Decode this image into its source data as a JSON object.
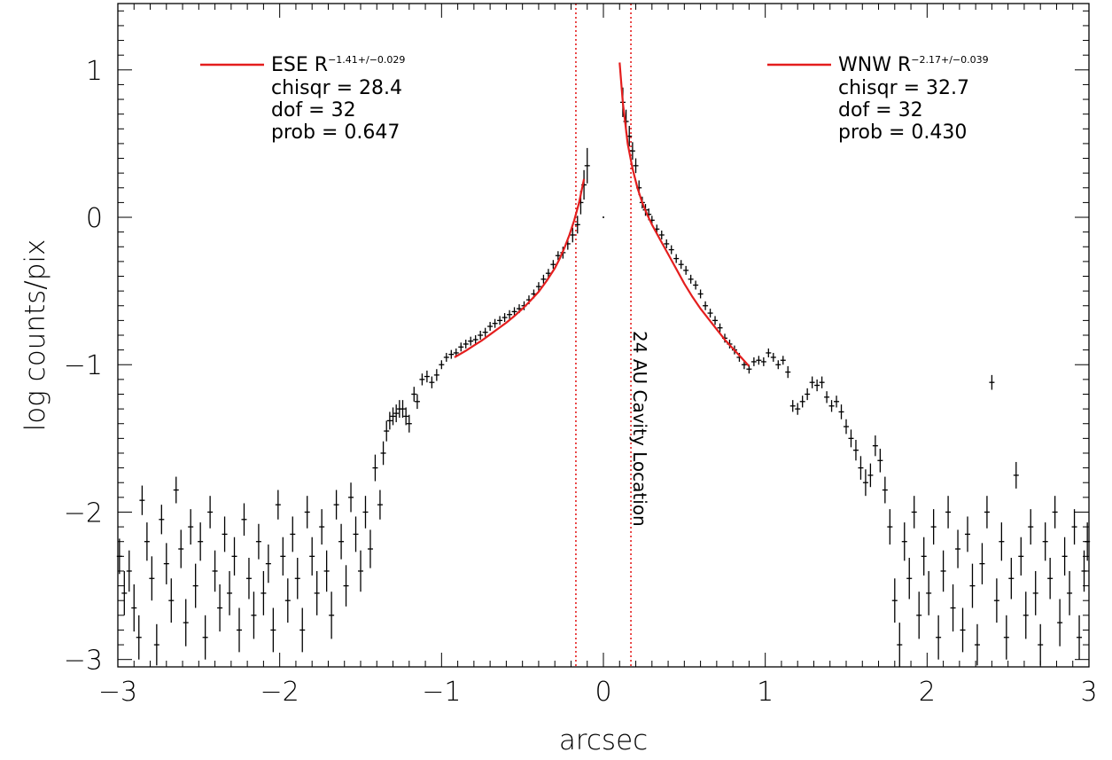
{
  "chart_data": {
    "type": "scatter",
    "xlabel": "arcsec",
    "ylabel": "log counts/pix",
    "xlim": [
      -3,
      3
    ],
    "ylim": [
      -3.05,
      1.45
    ],
    "x_ticks": [
      -3,
      -2,
      -1,
      0,
      1,
      2,
      3
    ],
    "x_tick_labels": [
      "−3",
      "−2",
      "−1",
      "0",
      "1",
      "2",
      "3"
    ],
    "y_ticks": [
      -3,
      -2,
      -1,
      0,
      1
    ],
    "y_tick_labels": [
      "−3",
      "−2",
      "−1",
      "0",
      "1"
    ],
    "grid": false,
    "colors": {
      "data": "#000000",
      "fit": "#e41e1e",
      "vline": "#e41e1e"
    },
    "vlines": [
      -0.17,
      0.17
    ],
    "annotation": "24 AU Cavity Location",
    "legend": [
      {
        "placement": "top-left",
        "name": "ESE",
        "base": "R",
        "sup": "−1.41+/−0.029",
        "lines": [
          "chisqr = 28.4",
          "dof = 32",
          "prob = 0.647"
        ]
      },
      {
        "placement": "top-right",
        "name": "WNW",
        "base": "R",
        "sup": "−2.17+/−0.039",
        "lines": [
          "chisqr = 32.7",
          "dof = 32",
          "prob = 0.430"
        ]
      }
    ],
    "fits": [
      {
        "name": "ESE",
        "x": [
          -0.92,
          -0.85,
          -0.8,
          -0.75,
          -0.7,
          -0.65,
          -0.6,
          -0.55,
          -0.5,
          -0.45,
          -0.4,
          -0.35,
          -0.3,
          -0.27,
          -0.24,
          -0.21,
          -0.18,
          -0.15,
          -0.12
        ],
        "y": [
          -0.95,
          -0.905,
          -0.87,
          -0.835,
          -0.795,
          -0.755,
          -0.715,
          -0.67,
          -0.62,
          -0.565,
          -0.505,
          -0.43,
          -0.345,
          -0.28,
          -0.205,
          -0.12,
          -0.02,
          0.1,
          0.26
        ]
      },
      {
        "name": "WNW",
        "x": [
          0.1,
          0.12,
          0.15,
          0.18,
          0.21,
          0.24,
          0.27,
          0.3,
          0.35,
          0.4,
          0.45,
          0.5,
          0.55,
          0.6,
          0.65,
          0.7,
          0.75,
          0.8,
          0.85,
          0.9
        ],
        "y": [
          1.05,
          0.78,
          0.5,
          0.33,
          0.2,
          0.1,
          0.02,
          -0.05,
          -0.15,
          -0.25,
          -0.35,
          -0.45,
          -0.54,
          -0.62,
          -0.69,
          -0.76,
          -0.83,
          -0.89,
          -0.95,
          -1.01
        ]
      }
    ],
    "points": [
      [
        -2.99,
        -2.3,
        0.12
      ],
      [
        -2.96,
        -2.55,
        0.15
      ],
      [
        -2.93,
        -2.4,
        0.14
      ],
      [
        -2.9,
        -2.65,
        0.16
      ],
      [
        -2.87,
        -2.85,
        0.15
      ],
      [
        -2.85,
        -1.92,
        0.1
      ],
      [
        -2.82,
        -2.2,
        0.13
      ],
      [
        -2.79,
        -2.45,
        0.15
      ],
      [
        -2.76,
        -2.9,
        0.14
      ],
      [
        -2.73,
        -2.05,
        0.1
      ],
      [
        -2.7,
        -2.35,
        0.14
      ],
      [
        -2.67,
        -2.6,
        0.15
      ],
      [
        -2.64,
        -1.85,
        0.09
      ],
      [
        -2.61,
        -2.25,
        0.13
      ],
      [
        -2.58,
        -2.75,
        0.16
      ],
      [
        -2.55,
        -2.1,
        0.12
      ],
      [
        -2.52,
        -2.5,
        0.15
      ],
      [
        -2.49,
        -2.2,
        0.13
      ],
      [
        -2.46,
        -2.85,
        0.15
      ],
      [
        -2.43,
        -2.0,
        0.11
      ],
      [
        -2.4,
        -2.4,
        0.14
      ],
      [
        -2.37,
        -2.65,
        0.16
      ],
      [
        -2.34,
        -2.15,
        0.12
      ],
      [
        -2.31,
        -2.55,
        0.15
      ],
      [
        -2.28,
        -2.3,
        0.13
      ],
      [
        -2.25,
        -2.8,
        0.15
      ],
      [
        -2.22,
        -2.05,
        0.11
      ],
      [
        -2.19,
        -2.45,
        0.14
      ],
      [
        -2.16,
        -2.7,
        0.16
      ],
      [
        -2.13,
        -2.2,
        0.12
      ],
      [
        -2.1,
        -2.55,
        0.15
      ],
      [
        -2.07,
        -2.35,
        0.13
      ],
      [
        -2.04,
        -2.8,
        0.15
      ],
      [
        -2.01,
        -1.95,
        0.1
      ],
      [
        -1.98,
        -2.3,
        0.13
      ],
      [
        -1.95,
        -2.6,
        0.15
      ],
      [
        -1.92,
        -2.15,
        0.12
      ],
      [
        -1.89,
        -2.45,
        0.14
      ],
      [
        -1.86,
        -2.8,
        0.15
      ],
      [
        -1.83,
        -2.0,
        0.11
      ],
      [
        -1.8,
        -2.3,
        0.13
      ],
      [
        -1.77,
        -2.55,
        0.15
      ],
      [
        -1.74,
        -2.1,
        0.12
      ],
      [
        -1.71,
        -2.4,
        0.14
      ],
      [
        -1.68,
        -2.7,
        0.16
      ],
      [
        -1.65,
        -1.95,
        0.1
      ],
      [
        -1.62,
        -2.2,
        0.12
      ],
      [
        -1.59,
        -2.5,
        0.14
      ],
      [
        -1.56,
        -1.9,
        0.1
      ],
      [
        -1.53,
        -2.15,
        0.12
      ],
      [
        -1.5,
        -2.4,
        0.14
      ],
      [
        -1.47,
        -2.0,
        0.11
      ],
      [
        -1.44,
        -2.25,
        0.13
      ],
      [
        -1.41,
        -1.7,
        0.09
      ],
      [
        -1.38,
        -1.95,
        0.1
      ],
      [
        -1.36,
        -1.6,
        0.08
      ],
      [
        -1.34,
        -1.45,
        0.07
      ],
      [
        -1.32,
        -1.38,
        0.06
      ],
      [
        -1.3,
        -1.35,
        0.06
      ],
      [
        -1.28,
        -1.33,
        0.06
      ],
      [
        -1.26,
        -1.3,
        0.06
      ],
      [
        -1.24,
        -1.3,
        0.06
      ],
      [
        -1.22,
        -1.35,
        0.06
      ],
      [
        -1.2,
        -1.4,
        0.06
      ],
      [
        -1.17,
        -1.2,
        0.05
      ],
      [
        -1.15,
        -1.25,
        0.05
      ],
      [
        -1.12,
        -1.1,
        0.04
      ],
      [
        -1.09,
        -1.08,
        0.04
      ],
      [
        -1.06,
        -1.12,
        0.04
      ],
      [
        -1.03,
        -1.07,
        0.04
      ],
      [
        -1.0,
        -1.0,
        0.03
      ],
      [
        -0.97,
        -0.95,
        0.03
      ],
      [
        -0.94,
        -0.93,
        0.03
      ],
      [
        -0.91,
        -0.92,
        0.03
      ],
      [
        -0.88,
        -0.88,
        0.03
      ],
      [
        -0.85,
        -0.86,
        0.03
      ],
      [
        -0.82,
        -0.84,
        0.03
      ],
      [
        -0.79,
        -0.83,
        0.03
      ],
      [
        -0.76,
        -0.8,
        0.03
      ],
      [
        -0.73,
        -0.78,
        0.03
      ],
      [
        -0.7,
        -0.74,
        0.03
      ],
      [
        -0.67,
        -0.72,
        0.03
      ],
      [
        -0.64,
        -0.7,
        0.03
      ],
      [
        -0.61,
        -0.68,
        0.03
      ],
      [
        -0.58,
        -0.66,
        0.03
      ],
      [
        -0.55,
        -0.64,
        0.03
      ],
      [
        -0.52,
        -0.62,
        0.03
      ],
      [
        -0.49,
        -0.6,
        0.03
      ],
      [
        -0.46,
        -0.56,
        0.03
      ],
      [
        -0.43,
        -0.52,
        0.03
      ],
      [
        -0.4,
        -0.47,
        0.03
      ],
      [
        -0.37,
        -0.42,
        0.03
      ],
      [
        -0.34,
        -0.38,
        0.03
      ],
      [
        -0.31,
        -0.32,
        0.03
      ],
      [
        -0.28,
        -0.26,
        0.03
      ],
      [
        -0.25,
        -0.24,
        0.04
      ],
      [
        -0.22,
        -0.18,
        0.04
      ],
      [
        -0.19,
        -0.12,
        0.05
      ],
      [
        -0.16,
        -0.05,
        0.06
      ],
      [
        -0.14,
        0.1,
        0.08
      ],
      [
        -0.12,
        0.22,
        0.1
      ],
      [
        -0.1,
        0.35,
        0.12
      ],
      [
        0.12,
        0.78,
        0.1
      ],
      [
        0.14,
        0.65,
        0.08
      ],
      [
        0.16,
        0.55,
        0.07
      ],
      [
        0.18,
        0.45,
        0.06
      ],
      [
        0.2,
        0.35,
        0.05
      ],
      [
        0.22,
        0.2,
        0.05
      ],
      [
        0.24,
        0.1,
        0.04
      ],
      [
        0.26,
        0.05,
        0.04
      ],
      [
        0.28,
        0.02,
        0.04
      ],
      [
        0.3,
        -0.02,
        0.03
      ],
      [
        0.33,
        -0.08,
        0.03
      ],
      [
        0.36,
        -0.12,
        0.03
      ],
      [
        0.39,
        -0.18,
        0.03
      ],
      [
        0.42,
        -0.22,
        0.03
      ],
      [
        0.45,
        -0.28,
        0.03
      ],
      [
        0.48,
        -0.32,
        0.03
      ],
      [
        0.51,
        -0.36,
        0.03
      ],
      [
        0.54,
        -0.42,
        0.03
      ],
      [
        0.57,
        -0.46,
        0.03
      ],
      [
        0.6,
        -0.52,
        0.03
      ],
      [
        0.63,
        -0.6,
        0.03
      ],
      [
        0.66,
        -0.65,
        0.03
      ],
      [
        0.69,
        -0.7,
        0.03
      ],
      [
        0.72,
        -0.75,
        0.03
      ],
      [
        0.75,
        -0.82,
        0.03
      ],
      [
        0.78,
        -0.86,
        0.03
      ],
      [
        0.81,
        -0.9,
        0.03
      ],
      [
        0.84,
        -0.95,
        0.03
      ],
      [
        0.87,
        -1.0,
        0.03
      ],
      [
        0.9,
        -1.03,
        0.03
      ],
      [
        0.93,
        -0.98,
        0.03
      ],
      [
        0.96,
        -0.97,
        0.03
      ],
      [
        0.99,
        -0.98,
        0.03
      ],
      [
        1.02,
        -0.92,
        0.03
      ],
      [
        1.05,
        -0.95,
        0.03
      ],
      [
        1.08,
        -1.0,
        0.03
      ],
      [
        1.11,
        -0.97,
        0.03
      ],
      [
        1.14,
        -1.05,
        0.04
      ],
      [
        1.17,
        -1.28,
        0.04
      ],
      [
        1.2,
        -1.3,
        0.04
      ],
      [
        1.23,
        -1.25,
        0.04
      ],
      [
        1.26,
        -1.2,
        0.04
      ],
      [
        1.29,
        -1.12,
        0.04
      ],
      [
        1.32,
        -1.14,
        0.04
      ],
      [
        1.35,
        -1.12,
        0.04
      ],
      [
        1.38,
        -1.22,
        0.04
      ],
      [
        1.41,
        -1.28,
        0.04
      ],
      [
        1.44,
        -1.25,
        0.04
      ],
      [
        1.47,
        -1.32,
        0.05
      ],
      [
        1.5,
        -1.42,
        0.05
      ],
      [
        1.53,
        -1.5,
        0.06
      ],
      [
        1.56,
        -1.58,
        0.07
      ],
      [
        1.59,
        -1.7,
        0.08
      ],
      [
        1.62,
        -1.8,
        0.09
      ],
      [
        1.65,
        -1.75,
        0.08
      ],
      [
        1.68,
        -1.55,
        0.07
      ],
      [
        1.71,
        -1.65,
        0.08
      ],
      [
        1.74,
        -1.85,
        0.09
      ],
      [
        1.77,
        -2.1,
        0.12
      ],
      [
        1.8,
        -2.6,
        0.15
      ],
      [
        1.83,
        -2.9,
        0.15
      ],
      [
        1.86,
        -2.2,
        0.13
      ],
      [
        1.89,
        -2.45,
        0.14
      ],
      [
        1.92,
        -2.0,
        0.11
      ],
      [
        1.95,
        -2.7,
        0.16
      ],
      [
        1.98,
        -2.3,
        0.13
      ],
      [
        2.01,
        -2.55,
        0.15
      ],
      [
        2.04,
        -2.1,
        0.12
      ],
      [
        2.07,
        -2.85,
        0.15
      ],
      [
        2.1,
        -2.4,
        0.14
      ],
      [
        2.13,
        -2.0,
        0.11
      ],
      [
        2.16,
        -2.65,
        0.16
      ],
      [
        2.19,
        -2.25,
        0.13
      ],
      [
        2.22,
        -2.8,
        0.15
      ],
      [
        2.25,
        -2.15,
        0.12
      ],
      [
        2.28,
        -2.5,
        0.15
      ],
      [
        2.31,
        -2.9,
        0.14
      ],
      [
        2.34,
        -2.35,
        0.14
      ],
      [
        2.37,
        -2.0,
        0.11
      ],
      [
        2.4,
        -1.12,
        0.05
      ],
      [
        2.43,
        -2.6,
        0.15
      ],
      [
        2.46,
        -2.2,
        0.13
      ],
      [
        2.49,
        -2.85,
        0.15
      ],
      [
        2.52,
        -2.45,
        0.14
      ],
      [
        2.55,
        -1.75,
        0.09
      ],
      [
        2.58,
        -2.3,
        0.13
      ],
      [
        2.61,
        -2.7,
        0.16
      ],
      [
        2.64,
        -2.1,
        0.12
      ],
      [
        2.67,
        -2.55,
        0.15
      ],
      [
        2.7,
        -2.9,
        0.14
      ],
      [
        2.73,
        -2.2,
        0.13
      ],
      [
        2.76,
        -2.45,
        0.14
      ],
      [
        2.79,
        -2.0,
        0.11
      ],
      [
        2.82,
        -2.75,
        0.16
      ],
      [
        2.85,
        -2.3,
        0.13
      ],
      [
        2.88,
        -2.55,
        0.15
      ],
      [
        2.91,
        -2.1,
        0.12
      ],
      [
        2.94,
        -2.85,
        0.15
      ],
      [
        2.97,
        -2.4,
        0.14
      ],
      [
        2.99,
        -2.2,
        0.13
      ]
    ]
  }
}
